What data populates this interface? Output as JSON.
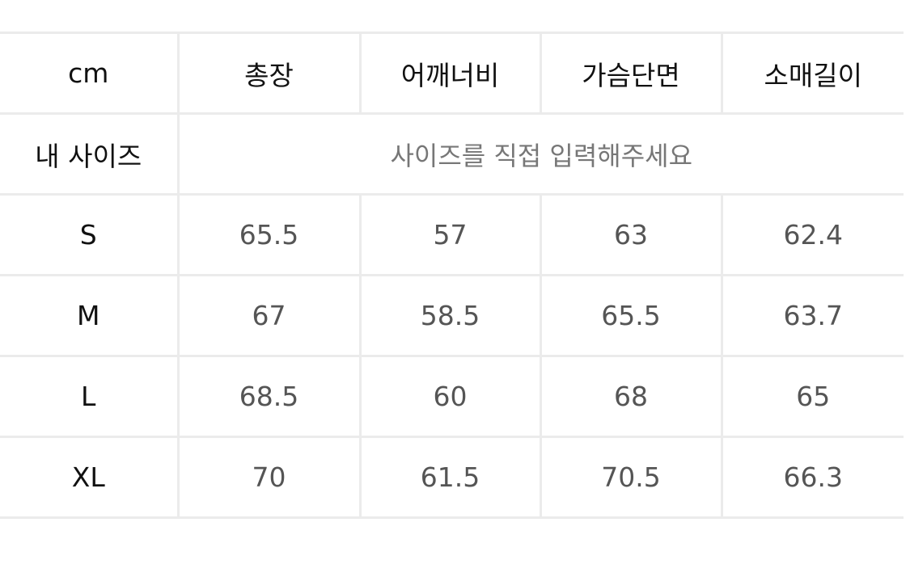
{
  "table": {
    "headers": [
      "cm",
      "총장",
      "어깨너비",
      "가슴단면",
      "소매길이"
    ],
    "my_size": {
      "label": "내 사이즈",
      "placeholder": "사이즈를 직접 입력해주세요"
    },
    "rows": [
      {
        "size": "S",
        "values": [
          "65.5",
          "57",
          "63",
          "62.4"
        ]
      },
      {
        "size": "M",
        "values": [
          "67",
          "58.5",
          "65.5",
          "63.7"
        ]
      },
      {
        "size": "L",
        "values": [
          "68.5",
          "60",
          "68",
          "65"
        ]
      },
      {
        "size": "XL",
        "values": [
          "70",
          "61.5",
          "70.5",
          "66.3"
        ]
      }
    ]
  }
}
